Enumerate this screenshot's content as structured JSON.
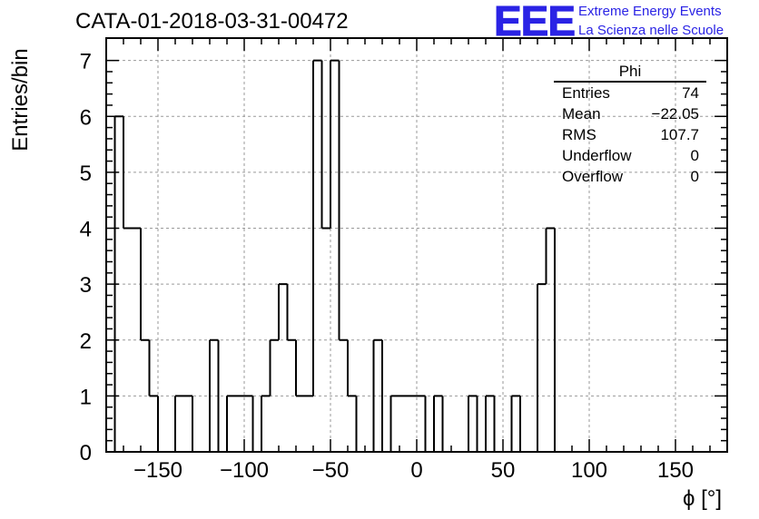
{
  "header": {
    "title": "CATA-01-2018-03-31-00472"
  },
  "logo": {
    "mark": "EEE",
    "line1": "Extreme Energy Events",
    "line2": "La Scienza nelle Scuole",
    "color": "#2a23e5"
  },
  "stats": {
    "title": "Phi",
    "rows": [
      {
        "name": "Entries",
        "value": "74"
      },
      {
        "name": "Mean",
        "value": "−22.05"
      },
      {
        "name": "RMS",
        "value": "107.7"
      },
      {
        "name": "Underflow",
        "value": "0"
      },
      {
        "name": "Overflow",
        "value": "0"
      }
    ]
  },
  "chart_data": {
    "type": "bar",
    "style": "step-histogram",
    "title": "CATA-01-2018-03-31-00472",
    "xlabel": "ϕ [°]",
    "ylabel": "Entries/bin",
    "xlim": [
      -180,
      180
    ],
    "ylim": [
      0,
      7.4
    ],
    "grid": true,
    "bin_width": 5,
    "bins_start": -175,
    "values": [
      6,
      4,
      4,
      2,
      1,
      0,
      0,
      1,
      1,
      0,
      0,
      2,
      0,
      1,
      1,
      1,
      0,
      1,
      2,
      3,
      2,
      1,
      1,
      7,
      4,
      7,
      2,
      1,
      0,
      0,
      2,
      0,
      1,
      1,
      1,
      1,
      0,
      1,
      0,
      0,
      0,
      1,
      0,
      1,
      0,
      0,
      1,
      0,
      0,
      3,
      4
    ],
    "x_ticks": [
      -150,
      -100,
      -50,
      0,
      50,
      100,
      150
    ],
    "x_tick_labels": [
      "−150",
      "−100",
      "−50",
      "0",
      "50",
      "100",
      "150"
    ],
    "y_ticks": [
      0,
      1,
      2,
      3,
      4,
      5,
      6,
      7
    ],
    "y_tick_labels": [
      "0",
      "1",
      "2",
      "3",
      "4",
      "5",
      "6",
      "7"
    ],
    "line_color": "#000000",
    "grid_color": "#9a9a9a"
  }
}
